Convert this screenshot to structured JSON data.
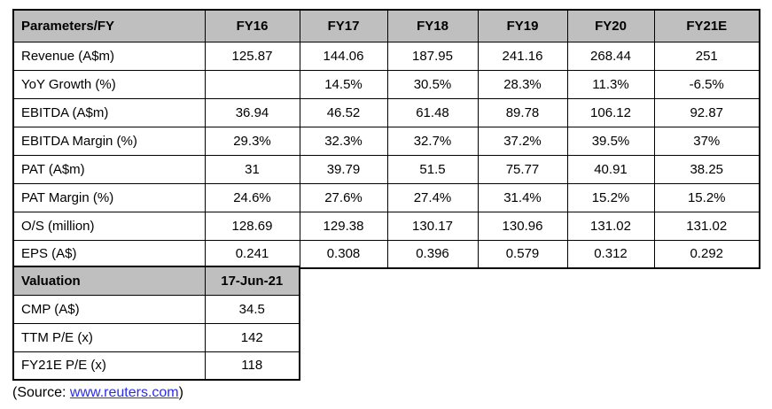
{
  "table": {
    "header": [
      "Parameters/FY",
      "FY16",
      "FY17",
      "FY18",
      "FY19",
      "FY20",
      "FY21E"
    ],
    "rows": [
      {
        "label": "Revenue (A$m)",
        "values": [
          "125.87",
          "144.06",
          "187.95",
          "241.16",
          "268.44",
          "251"
        ]
      },
      {
        "label": "YoY Growth (%)",
        "values": [
          "",
          "14.5%",
          "30.5%",
          "28.3%",
          "11.3%",
          "-6.5%"
        ]
      },
      {
        "label": "EBITDA (A$m)",
        "values": [
          "36.94",
          "46.52",
          "61.48",
          "89.78",
          "106.12",
          "92.87"
        ]
      },
      {
        "label": "EBITDA Margin (%)",
        "values": [
          "29.3%",
          "32.3%",
          "32.7%",
          "37.2%",
          "39.5%",
          "37%"
        ]
      },
      {
        "label": "PAT (A$m)",
        "values": [
          "31",
          "39.79",
          "51.5",
          "75.77",
          "40.91",
          "38.25"
        ]
      },
      {
        "label": "PAT Margin (%)",
        "values": [
          "24.6%",
          "27.6%",
          "27.4%",
          "31.4%",
          "15.2%",
          "15.2%"
        ]
      },
      {
        "label": "O/S (million)",
        "values": [
          "128.69",
          "129.38",
          "130.17",
          "130.96",
          "131.02",
          "131.02"
        ]
      },
      {
        "label": "EPS (A$)",
        "values": [
          "0.241",
          "0.308",
          "0.396",
          "0.579",
          "0.312",
          "0.292"
        ]
      }
    ]
  },
  "valuation": {
    "header_label": "Valuation",
    "header_value": "17-Jun-21",
    "rows": [
      {
        "label": "CMP (A$)",
        "value": "34.5"
      },
      {
        "label": "TTM P/E (x)",
        "value": "142"
      },
      {
        "label": "FY21E P/E (x)",
        "value": "118"
      }
    ]
  },
  "source": {
    "prefix": "(Source: ",
    "link": "www.reuters.com",
    "suffix": ")"
  },
  "colors": {
    "header_bg": "#bfbfbf",
    "border": "#000000",
    "link": "#2b2bee",
    "text": "#000000"
  }
}
